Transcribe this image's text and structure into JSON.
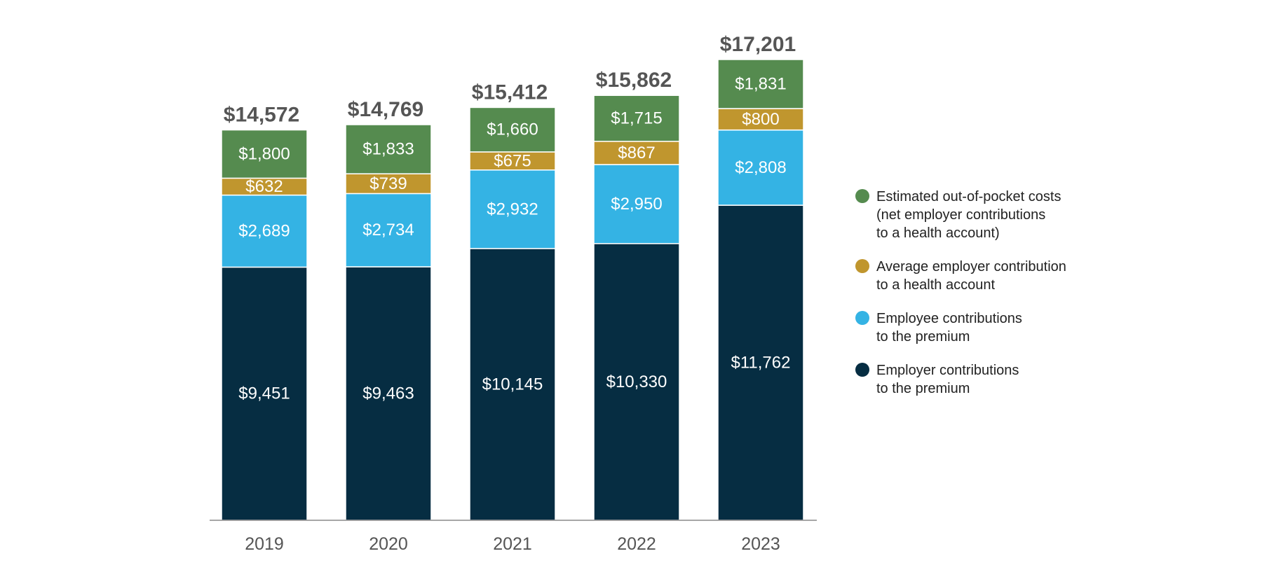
{
  "chart_data": {
    "type": "bar",
    "stacked": true,
    "categories": [
      "2019",
      "2020",
      "2021",
      "2022",
      "2023"
    ],
    "series": [
      {
        "key": "employer",
        "name": "Employer contributions\nto the premium",
        "color": "#062D42",
        "values": [
          9451,
          9463,
          10145,
          10330,
          11762
        ],
        "labels": [
          "$9,451",
          "$9,463",
          "$10,145",
          "$10,330",
          "$11,762"
        ]
      },
      {
        "key": "employee",
        "name": "Employee contributions\nto the premium",
        "color": "#34B3E4",
        "values": [
          2689,
          2734,
          2932,
          2950,
          2808
        ],
        "labels": [
          "$2,689",
          "$2,734",
          "$2,932",
          "$2,950",
          "$2,808"
        ]
      },
      {
        "key": "health_account",
        "name": "Average employer contribution\nto a health account",
        "color": "#C0962E",
        "values": [
          632,
          739,
          675,
          867,
          800
        ],
        "labels": [
          "$632",
          "$739",
          "$675",
          "$867",
          "$800"
        ]
      },
      {
        "key": "oop",
        "name": "Estimated out-of-pocket costs\n(net employer contributions\nto a health account)",
        "color": "#558B4F",
        "values": [
          1800,
          1833,
          1660,
          1715,
          1831
        ],
        "labels": [
          "$1,800",
          "$1,833",
          "$1,660",
          "$1,715",
          "$1,831"
        ]
      }
    ],
    "totals": [
      14572,
      14769,
      15412,
      15862,
      17201
    ],
    "total_labels": [
      "$14,572",
      "$14,769",
      "$15,412",
      "$15,862",
      "$17,201"
    ],
    "legend_order": [
      "oop",
      "health_account",
      "employee",
      "employer"
    ],
    "legend_position": "right",
    "ylim": [
      0,
      17201
    ],
    "grid": false,
    "title": "",
    "xlabel": "",
    "ylabel": ""
  }
}
